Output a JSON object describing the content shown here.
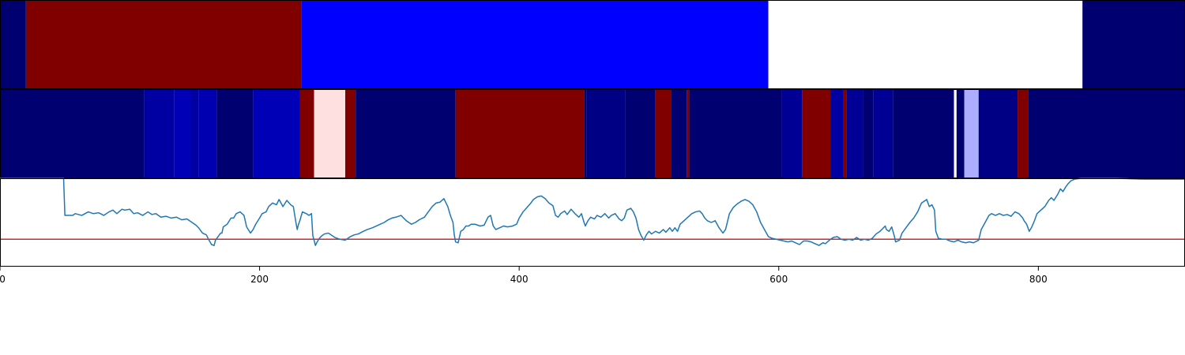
{
  "chart_data": [
    {
      "type": "heatmap",
      "colormap": "seismic",
      "x_range": [
        0,
        913
      ],
      "segments": [
        {
          "start": 0,
          "end": 20,
          "level": 0.05
        },
        {
          "start": 20,
          "end": 232,
          "level": 1.0
        },
        {
          "start": 232,
          "end": 592,
          "level": 0.25
        },
        {
          "start": 592,
          "end": 834,
          "level": 0.5
        },
        {
          "start": 834,
          "end": 913,
          "level": 0.05
        }
      ]
    },
    {
      "type": "heatmap",
      "colormap": "seismic",
      "x_range": [
        0,
        913
      ],
      "segments": [
        {
          "start": 0,
          "end": 111,
          "level": 0.05
        },
        {
          "start": 111,
          "end": 134,
          "level": 0.12
        },
        {
          "start": 134,
          "end": 147,
          "level": 0.15
        },
        {
          "start": 147,
          "end": 153,
          "level": 0.12
        },
        {
          "start": 153,
          "end": 167,
          "level": 0.14
        },
        {
          "start": 167,
          "end": 195,
          "level": 0.05
        },
        {
          "start": 195,
          "end": 231,
          "level": 0.15
        },
        {
          "start": 231,
          "end": 242,
          "level": 1.0
        },
        {
          "start": 242,
          "end": 266,
          "level": 0.53
        },
        {
          "start": 266,
          "end": 274,
          "level": 1.0
        },
        {
          "start": 274,
          "end": 351,
          "level": 0.05
        },
        {
          "start": 351,
          "end": 450,
          "level": 1.0
        },
        {
          "start": 450,
          "end": 452,
          "level": 0.05
        },
        {
          "start": 452,
          "end": 482,
          "level": 0.08
        },
        {
          "start": 482,
          "end": 505,
          "level": 0.05
        },
        {
          "start": 505,
          "end": 517,
          "level": 1.0
        },
        {
          "start": 517,
          "end": 529,
          "level": 0.05
        },
        {
          "start": 529,
          "end": 531,
          "level": 1.0
        },
        {
          "start": 531,
          "end": 602,
          "level": 0.05
        },
        {
          "start": 602,
          "end": 618,
          "level": 0.1
        },
        {
          "start": 618,
          "end": 640,
          "level": 1.0
        },
        {
          "start": 640,
          "end": 650,
          "level": 0.12
        },
        {
          "start": 650,
          "end": 652,
          "level": 1.0
        },
        {
          "start": 652,
          "end": 665,
          "level": 0.1
        },
        {
          "start": 665,
          "end": 673,
          "level": 0.05
        },
        {
          "start": 673,
          "end": 688,
          "level": 0.1
        },
        {
          "start": 688,
          "end": 735,
          "level": 0.05
        },
        {
          "start": 735,
          "end": 737,
          "level": 0.5
        },
        {
          "start": 737,
          "end": 743,
          "level": 0.05
        },
        {
          "start": 743,
          "end": 754,
          "level": 0.42
        },
        {
          "start": 754,
          "end": 784,
          "level": 0.08
        },
        {
          "start": 784,
          "end": 792,
          "level": 1.0
        },
        {
          "start": 792,
          "end": 913,
          "level": 0.05
        }
      ]
    },
    {
      "type": "line",
      "x_range": [
        0,
        913
      ],
      "y_range": [
        0,
        1
      ],
      "x_ticks": [
        "0",
        "200",
        "400",
        "600",
        "800"
      ],
      "x_tick_values": [
        0,
        200,
        400,
        600,
        800
      ],
      "threshold": 0.31,
      "series_color": "#1f77b4",
      "threshold_color": "#d62728",
      "series_points": [
        [
          0,
          1.0
        ],
        [
          49,
          1.0
        ],
        [
          50,
          0.58
        ],
        [
          56,
          0.58
        ],
        [
          58,
          0.6
        ],
        [
          63,
          0.58
        ],
        [
          68,
          0.62
        ],
        [
          72,
          0.6
        ],
        [
          76,
          0.61
        ],
        [
          80,
          0.58
        ],
        [
          84,
          0.62
        ],
        [
          87,
          0.64
        ],
        [
          90,
          0.6
        ],
        [
          94,
          0.65
        ],
        [
          96,
          0.64
        ],
        [
          100,
          0.65
        ],
        [
          103,
          0.6
        ],
        [
          106,
          0.61
        ],
        [
          110,
          0.58
        ],
        [
          114,
          0.62
        ],
        [
          117,
          0.59
        ],
        [
          120,
          0.6
        ],
        [
          124,
          0.56
        ],
        [
          128,
          0.57
        ],
        [
          132,
          0.55
        ],
        [
          136,
          0.56
        ],
        [
          140,
          0.53
        ],
        [
          144,
          0.54
        ],
        [
          148,
          0.5
        ],
        [
          151,
          0.47
        ],
        [
          153,
          0.44
        ],
        [
          156,
          0.38
        ],
        [
          159,
          0.36
        ],
        [
          161,
          0.3
        ],
        [
          163,
          0.25
        ],
        [
          165,
          0.24
        ],
        [
          166,
          0.3
        ],
        [
          170,
          0.38
        ],
        [
          171,
          0.38
        ],
        [
          172,
          0.45
        ],
        [
          175,
          0.48
        ],
        [
          178,
          0.55
        ],
        [
          180,
          0.55
        ],
        [
          182,
          0.6
        ],
        [
          185,
          0.62
        ],
        [
          188,
          0.58
        ],
        [
          190,
          0.45
        ],
        [
          193,
          0.38
        ],
        [
          195,
          0.42
        ],
        [
          197,
          0.48
        ],
        [
          200,
          0.55
        ],
        [
          202,
          0.6
        ],
        [
          205,
          0.62
        ],
        [
          207,
          0.68
        ],
        [
          210,
          0.72
        ],
        [
          213,
          0.7
        ],
        [
          215,
          0.76
        ],
        [
          218,
          0.68
        ],
        [
          221,
          0.75
        ],
        [
          224,
          0.7
        ],
        [
          226,
          0.68
        ],
        [
          228,
          0.5
        ],
        [
          229,
          0.42
        ],
        [
          230,
          0.48
        ],
        [
          231,
          0.52
        ],
        [
          233,
          0.62
        ],
        [
          236,
          0.6
        ],
        [
          238,
          0.58
        ],
        [
          240,
          0.6
        ],
        [
          241,
          0.35
        ],
        [
          242,
          0.3
        ],
        [
          243,
          0.24
        ],
        [
          244,
          0.27
        ],
        [
          246,
          0.32
        ],
        [
          248,
          0.35
        ],
        [
          250,
          0.37
        ],
        [
          253,
          0.38
        ],
        [
          256,
          0.35
        ],
        [
          258,
          0.33
        ],
        [
          262,
          0.31
        ],
        [
          266,
          0.3
        ],
        [
          270,
          0.34
        ],
        [
          273,
          0.36
        ],
        [
          276,
          0.37
        ],
        [
          280,
          0.4
        ],
        [
          283,
          0.42
        ],
        [
          287,
          0.44
        ],
        [
          290,
          0.46
        ],
        [
          293,
          0.48
        ],
        [
          296,
          0.5
        ],
        [
          299,
          0.53
        ],
        [
          302,
          0.55
        ],
        [
          305,
          0.56
        ],
        [
          309,
          0.58
        ],
        [
          313,
          0.52
        ],
        [
          317,
          0.48
        ],
        [
          320,
          0.5
        ],
        [
          323,
          0.53
        ],
        [
          327,
          0.56
        ],
        [
          330,
          0.62
        ],
        [
          333,
          0.68
        ],
        [
          336,
          0.72
        ],
        [
          339,
          0.73
        ],
        [
          342,
          0.77
        ],
        [
          345,
          0.68
        ],
        [
          347,
          0.58
        ],
        [
          349,
          0.5
        ],
        [
          350,
          0.36
        ],
        [
          351,
          0.28
        ],
        [
          353,
          0.27
        ],
        [
          355,
          0.4
        ],
        [
          357,
          0.42
        ],
        [
          359,
          0.46
        ],
        [
          361,
          0.46
        ],
        [
          363,
          0.48
        ],
        [
          366,
          0.48
        ],
        [
          368,
          0.47
        ],
        [
          370,
          0.46
        ],
        [
          373,
          0.47
        ],
        [
          376,
          0.56
        ],
        [
          378,
          0.58
        ],
        [
          380,
          0.46
        ],
        [
          382,
          0.42
        ],
        [
          385,
          0.44
        ],
        [
          388,
          0.46
        ],
        [
          391,
          0.45
        ],
        [
          395,
          0.46
        ],
        [
          398,
          0.48
        ],
        [
          400,
          0.55
        ],
        [
          403,
          0.62
        ],
        [
          406,
          0.67
        ],
        [
          409,
          0.72
        ],
        [
          411,
          0.76
        ],
        [
          414,
          0.79
        ],
        [
          417,
          0.8
        ],
        [
          420,
          0.77
        ],
        [
          423,
          0.72
        ],
        [
          426,
          0.69
        ],
        [
          428,
          0.58
        ],
        [
          430,
          0.56
        ],
        [
          432,
          0.6
        ],
        [
          435,
          0.63
        ],
        [
          437,
          0.59
        ],
        [
          440,
          0.65
        ],
        [
          443,
          0.6
        ],
        [
          446,
          0.56
        ],
        [
          448,
          0.6
        ],
        [
          450,
          0.5
        ],
        [
          451,
          0.46
        ],
        [
          453,
          0.52
        ],
        [
          455,
          0.56
        ],
        [
          458,
          0.54
        ],
        [
          460,
          0.58
        ],
        [
          463,
          0.56
        ],
        [
          466,
          0.6
        ],
        [
          469,
          0.55
        ],
        [
          471,
          0.58
        ],
        [
          474,
          0.6
        ],
        [
          477,
          0.54
        ],
        [
          479,
          0.52
        ],
        [
          481,
          0.55
        ],
        [
          483,
          0.64
        ],
        [
          486,
          0.66
        ],
        [
          488,
          0.62
        ],
        [
          490,
          0.55
        ],
        [
          492,
          0.42
        ],
        [
          494,
          0.35
        ],
        [
          496,
          0.3
        ],
        [
          498,
          0.36
        ],
        [
          500,
          0.4
        ],
        [
          502,
          0.37
        ],
        [
          505,
          0.4
        ],
        [
          508,
          0.38
        ],
        [
          511,
          0.42
        ],
        [
          513,
          0.39
        ],
        [
          516,
          0.44
        ],
        [
          518,
          0.4
        ],
        [
          520,
          0.44
        ],
        [
          522,
          0.4
        ],
        [
          524,
          0.48
        ],
        [
          527,
          0.52
        ],
        [
          530,
          0.56
        ],
        [
          533,
          0.6
        ],
        [
          536,
          0.62
        ],
        [
          539,
          0.63
        ],
        [
          541,
          0.6
        ],
        [
          543,
          0.55
        ],
        [
          545,
          0.52
        ],
        [
          548,
          0.5
        ],
        [
          551,
          0.52
        ],
        [
          554,
          0.44
        ],
        [
          557,
          0.38
        ],
        [
          559,
          0.42
        ],
        [
          562,
          0.6
        ],
        [
          565,
          0.67
        ],
        [
          568,
          0.71
        ],
        [
          571,
          0.74
        ],
        [
          574,
          0.76
        ],
        [
          577,
          0.74
        ],
        [
          580,
          0.7
        ],
        [
          583,
          0.62
        ],
        [
          586,
          0.5
        ],
        [
          589,
          0.42
        ],
        [
          592,
          0.34
        ],
        [
          595,
          0.32
        ],
        [
          598,
          0.31
        ],
        [
          601,
          0.3
        ],
        [
          604,
          0.29
        ],
        [
          607,
          0.28
        ],
        [
          610,
          0.29
        ],
        [
          613,
          0.27
        ],
        [
          616,
          0.25
        ],
        [
          619,
          0.29
        ],
        [
          622,
          0.29
        ],
        [
          625,
          0.28
        ],
        [
          628,
          0.26
        ],
        [
          631,
          0.24
        ],
        [
          634,
          0.27
        ],
        [
          636,
          0.26
        ],
        [
          639,
          0.3
        ],
        [
          642,
          0.33
        ],
        [
          645,
          0.34
        ],
        [
          648,
          0.31
        ],
        [
          651,
          0.3
        ],
        [
          654,
          0.31
        ],
        [
          657,
          0.3
        ],
        [
          660,
          0.33
        ],
        [
          663,
          0.3
        ],
        [
          666,
          0.31
        ],
        [
          669,
          0.3
        ],
        [
          672,
          0.32
        ],
        [
          675,
          0.37
        ],
        [
          678,
          0.4
        ],
        [
          680,
          0.43
        ],
        [
          682,
          0.46
        ],
        [
          683,
          0.42
        ],
        [
          685,
          0.4
        ],
        [
          687,
          0.45
        ],
        [
          689,
          0.35
        ],
        [
          690,
          0.28
        ],
        [
          693,
          0.3
        ],
        [
          695,
          0.38
        ],
        [
          698,
          0.44
        ],
        [
          701,
          0.5
        ],
        [
          704,
          0.55
        ],
        [
          707,
          0.62
        ],
        [
          710,
          0.72
        ],
        [
          712,
          0.74
        ],
        [
          714,
          0.76
        ],
        [
          716,
          0.68
        ],
        [
          718,
          0.7
        ],
        [
          720,
          0.64
        ],
        [
          721,
          0.4
        ],
        [
          723,
          0.32
        ],
        [
          726,
          0.31
        ],
        [
          729,
          0.31
        ],
        [
          732,
          0.29
        ],
        [
          735,
          0.28
        ],
        [
          738,
          0.3
        ],
        [
          741,
          0.28
        ],
        [
          744,
          0.27
        ],
        [
          747,
          0.28
        ],
        [
          750,
          0.27
        ],
        [
          754,
          0.3
        ],
        [
          756,
          0.42
        ],
        [
          759,
          0.5
        ],
        [
          762,
          0.58
        ],
        [
          764,
          0.6
        ],
        [
          767,
          0.58
        ],
        [
          770,
          0.6
        ],
        [
          773,
          0.58
        ],
        [
          776,
          0.59
        ],
        [
          779,
          0.57
        ],
        [
          782,
          0.62
        ],
        [
          785,
          0.6
        ],
        [
          788,
          0.55
        ],
        [
          789,
          0.52
        ],
        [
          791,
          0.48
        ],
        [
          793,
          0.4
        ],
        [
          795,
          0.45
        ],
        [
          797,
          0.52
        ],
        [
          799,
          0.6
        ],
        [
          802,
          0.64
        ],
        [
          805,
          0.68
        ],
        [
          808,
          0.75
        ],
        [
          810,
          0.78
        ],
        [
          812,
          0.75
        ],
        [
          815,
          0.82
        ],
        [
          817,
          0.88
        ],
        [
          819,
          0.85
        ],
        [
          821,
          0.9
        ],
        [
          823,
          0.94
        ],
        [
          825,
          0.97
        ],
        [
          828,
          0.99
        ],
        [
          833,
          1.0
        ],
        [
          840,
          1.0
        ],
        [
          860,
          1.0
        ],
        [
          880,
          0.99
        ],
        [
          895,
          0.99
        ],
        [
          913,
          0.99
        ]
      ]
    }
  ]
}
